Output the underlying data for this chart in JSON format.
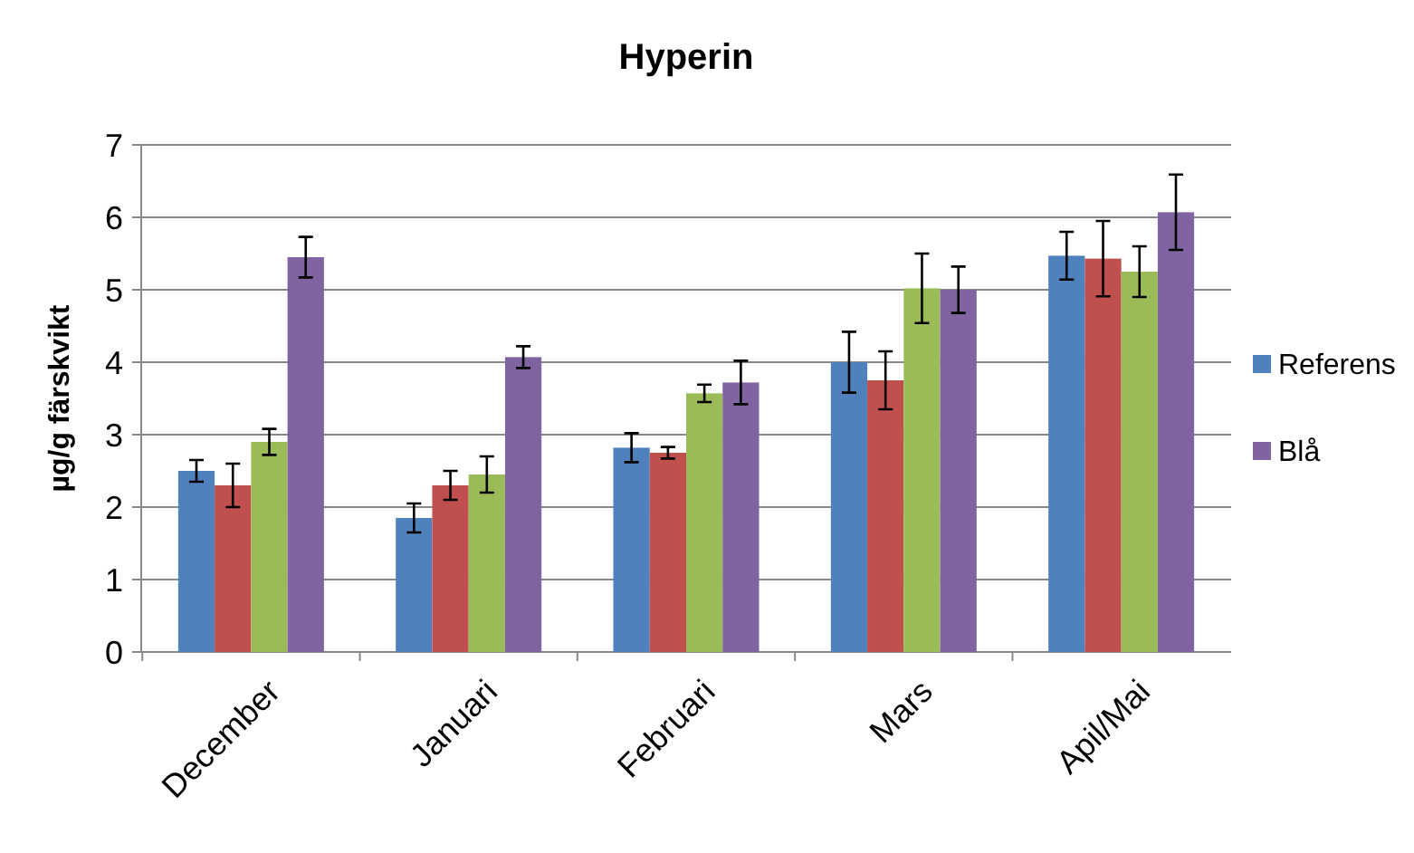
{
  "chart_data": {
    "type": "bar",
    "title": "Hyperin",
    "ylabel": "µg/g färskvikt",
    "categories": [
      "December",
      "Januari",
      "Februari",
      "Mars",
      "Apil/Mai"
    ],
    "series": [
      {
        "name": "Referens",
        "color": "#4f81bd",
        "values": [
          2.5,
          1.85,
          2.82,
          4.0,
          5.47
        ],
        "errors": [
          0.15,
          0.2,
          0.2,
          0.42,
          0.33
        ]
      },
      {
        "color": "#c0504d",
        "values": [
          2.3,
          2.3,
          2.75,
          3.75,
          5.43
        ],
        "errors": [
          0.3,
          0.2,
          0.08,
          0.4,
          0.52
        ]
      },
      {
        "color": "#9bbb59",
        "values": [
          2.9,
          2.45,
          3.57,
          5.02,
          5.25
        ],
        "errors": [
          0.18,
          0.25,
          0.12,
          0.48,
          0.35
        ]
      },
      {
        "name": "Blå",
        "color": "#8064a2",
        "values": [
          5.45,
          4.07,
          3.72,
          5.0,
          6.07
        ],
        "errors": [
          0.28,
          0.15,
          0.3,
          0.32,
          0.52
        ]
      }
    ],
    "ylim": [
      0,
      7
    ],
    "yticks": [
      0,
      1,
      2,
      3,
      4,
      5,
      6,
      7
    ],
    "grid": "y",
    "legend": "right"
  }
}
